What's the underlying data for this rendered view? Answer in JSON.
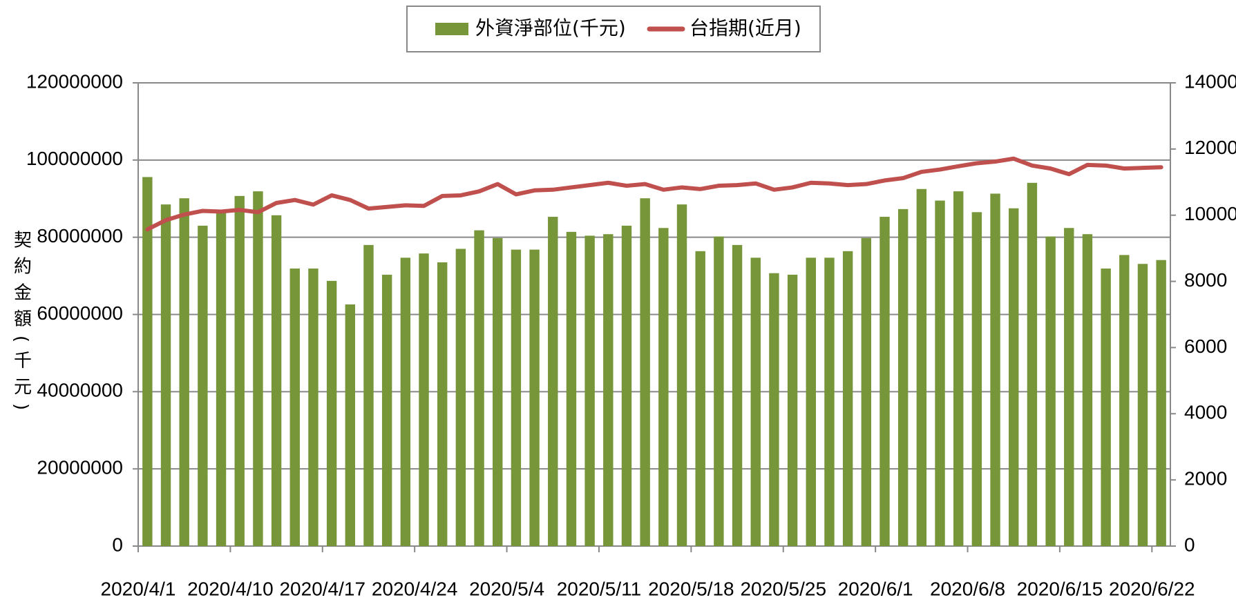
{
  "chart_data": {
    "type": "bar",
    "y_label": "契約金額(千元)",
    "categories": [
      "2020/4/1",
      null,
      null,
      null,
      null,
      "2020/4/10",
      null,
      null,
      null,
      null,
      "2020/4/17",
      null,
      null,
      null,
      null,
      "2020/4/24",
      null,
      null,
      null,
      null,
      "2020/5/4",
      null,
      null,
      null,
      null,
      "2020/5/11",
      null,
      null,
      null,
      null,
      "2020/5/18",
      null,
      null,
      null,
      null,
      "2020/5/25",
      null,
      null,
      null,
      null,
      "2020/6/1",
      null,
      null,
      null,
      null,
      "2020/6/8",
      null,
      null,
      null,
      null,
      "2020/6/15",
      null,
      null,
      null,
      null,
      "2020/6/22"
    ],
    "series": [
      {
        "name": "外資淨部位(千元)",
        "type": "bar",
        "color": "#77963a",
        "values": [
          95600000,
          88500000,
          90100000,
          83000000,
          86500000,
          90700000,
          91900000,
          85700000,
          71900000,
          71900000,
          68700000,
          62600000,
          78000000,
          70300000,
          74700000,
          75800000,
          73500000,
          77000000,
          81800000,
          79800000,
          76800000,
          76800000,
          85300000,
          81400000,
          80400000,
          80800000,
          83000000,
          90100000,
          82400000,
          88500000,
          76400000,
          80200000,
          78000000,
          74700000,
          70700000,
          70300000,
          74700000,
          74700000,
          76400000,
          79800000,
          85300000,
          87300000,
          92500000,
          89500000,
          91900000,
          86500000,
          91300000,
          87500000,
          94100000,
          80200000,
          82400000,
          80800000,
          71900000,
          75400000,
          73100000,
          74100000
        ]
      },
      {
        "name": "台指期(近月)",
        "type": "line",
        "axis": "y2",
        "color": "#c0504d",
        "values": [
          9570,
          9850,
          10020,
          10130,
          10110,
          10160,
          10090,
          10370,
          10460,
          10320,
          10600,
          10460,
          10200,
          10250,
          10300,
          10280,
          10580,
          10600,
          10720,
          10940,
          10630,
          10750,
          10770,
          10840,
          10910,
          10980,
          10890,
          10940,
          10770,
          10840,
          10790,
          10890,
          10910,
          10960,
          10770,
          10840,
          10980,
          10960,
          10910,
          10940,
          11050,
          11120,
          11310,
          11380,
          11480,
          11570,
          11620,
          11710,
          11500,
          11410,
          11240,
          11520,
          11500,
          11410,
          11430,
          11450
        ]
      }
    ],
    "ylim": [
      0,
      120000000
    ],
    "yticks": [
      0,
      20000000,
      40000000,
      60000000,
      80000000,
      100000000,
      120000000
    ],
    "y2lim": [
      0,
      14000
    ],
    "y2ticks": [
      0,
      2000,
      4000,
      6000,
      8000,
      10000,
      12000,
      14000
    ],
    "grid": true,
    "legend": "top"
  }
}
